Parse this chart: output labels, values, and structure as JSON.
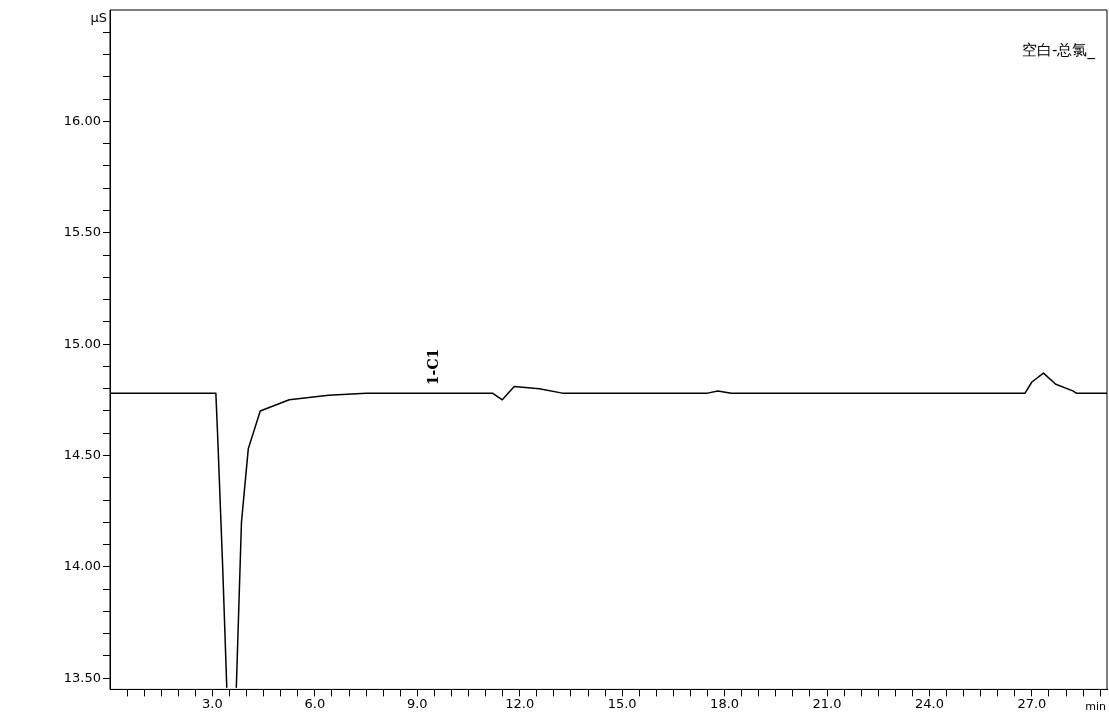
{
  "chart_data": {
    "type": "line",
    "title": "空白-总氯_",
    "xlabel": "min",
    "ylabel": "µS",
    "x": [
      0,
      3.1,
      3.15,
      3.3,
      3.42,
      3.55,
      3.7,
      3.85,
      4.05,
      4.4,
      5.25,
      6.4,
      7.5,
      11.2,
      11.49,
      11.84,
      12.57,
      13.25,
      17.5,
      17.8,
      18.2,
      26.8,
      27.0,
      27.34,
      27.7,
      28.2,
      28.3,
      29.2
    ],
    "series": [
      {
        "color": "#000000",
        "values": [
          14.78,
          14.78,
          14.6,
          14.0,
          13.46,
          null,
          13.46,
          14.2,
          14.53,
          14.7,
          14.75,
          14.77,
          14.78,
          14.78,
          14.75,
          14.81,
          14.8,
          14.78,
          14.78,
          14.79,
          14.78,
          14.78,
          14.83,
          14.87,
          14.82,
          14.79,
          14.78,
          14.78
        ]
      }
    ],
    "xlim": [
      0,
      29.2
    ],
    "ylim": [
      13.45,
      16.5
    ],
    "xticks": [
      {
        "value": 0.5,
        "label": null
      },
      {
        "value": 1,
        "label": null
      },
      {
        "value": 1.5,
        "label": null
      },
      {
        "value": 2,
        "label": null
      },
      {
        "value": 2.5,
        "label": null
      },
      {
        "value": 3,
        "label": "3.0"
      },
      {
        "value": 3.5,
        "label": null
      },
      {
        "value": 4,
        "label": null
      },
      {
        "value": 4.5,
        "label": null
      },
      {
        "value": 5,
        "label": null
      },
      {
        "value": 5.5,
        "label": null
      },
      {
        "value": 6,
        "label": "6.0"
      },
      {
        "value": 6.5,
        "label": null
      },
      {
        "value": 7,
        "label": null
      },
      {
        "value": 7.5,
        "label": null
      },
      {
        "value": 8,
        "label": null
      },
      {
        "value": 8.5,
        "label": null
      },
      {
        "value": 9,
        "label": "9.0"
      },
      {
        "value": 9.5,
        "label": null
      },
      {
        "value": 10,
        "label": null
      },
      {
        "value": 10.5,
        "label": null
      },
      {
        "value": 11,
        "label": null
      },
      {
        "value": 11.5,
        "label": null
      },
      {
        "value": 12,
        "label": "12.0"
      },
      {
        "value": 12.5,
        "label": null
      },
      {
        "value": 13,
        "label": null
      },
      {
        "value": 13.5,
        "label": null
      },
      {
        "value": 14,
        "label": null
      },
      {
        "value": 14.5,
        "label": null
      },
      {
        "value": 15,
        "label": "15.0"
      },
      {
        "value": 15.5,
        "label": null
      },
      {
        "value": 16,
        "label": null
      },
      {
        "value": 16.5,
        "label": null
      },
      {
        "value": 17,
        "label": null
      },
      {
        "value": 17.5,
        "label": null
      },
      {
        "value": 18,
        "label": "18.0"
      },
      {
        "value": 18.5,
        "label": null
      },
      {
        "value": 19,
        "label": null
      },
      {
        "value": 19.5,
        "label": null
      },
      {
        "value": 20,
        "label": null
      },
      {
        "value": 20.5,
        "label": null
      },
      {
        "value": 21,
        "label": "21.0"
      },
      {
        "value": 21.5,
        "label": null
      },
      {
        "value": 22,
        "label": null
      },
      {
        "value": 22.5,
        "label": null
      },
      {
        "value": 23,
        "label": null
      },
      {
        "value": 23.5,
        "label": null
      },
      {
        "value": 24,
        "label": "24.0"
      },
      {
        "value": 24.5,
        "label": null
      },
      {
        "value": 25,
        "label": null
      },
      {
        "value": 25.5,
        "label": null
      },
      {
        "value": 26,
        "label": null
      },
      {
        "value": 26.5,
        "label": null
      },
      {
        "value": 27,
        "label": "27.0"
      },
      {
        "value": 27.5,
        "label": null
      },
      {
        "value": 28,
        "label": null
      },
      {
        "value": 28.5,
        "label": null
      },
      {
        "value": 29,
        "label": null
      }
    ],
    "yticks": [
      {
        "value": 13.5,
        "label": "13.50"
      },
      {
        "value": 13.6,
        "label": null
      },
      {
        "value": 13.7,
        "label": null
      },
      {
        "value": 13.8,
        "label": null
      },
      {
        "value": 13.9,
        "label": null
      },
      {
        "value": 14,
        "label": "14.00"
      },
      {
        "value": 14.1,
        "label": null
      },
      {
        "value": 14.2,
        "label": null
      },
      {
        "value": 14.3,
        "label": null
      },
      {
        "value": 14.4,
        "label": null
      },
      {
        "value": 14.5,
        "label": "14.50"
      },
      {
        "value": 14.6,
        "label": null
      },
      {
        "value": 14.7,
        "label": null
      },
      {
        "value": 14.8,
        "label": null
      },
      {
        "value": 14.9,
        "label": null
      },
      {
        "value": 15,
        "label": "15.00"
      },
      {
        "value": 15.1,
        "label": null
      },
      {
        "value": 15.2,
        "label": null
      },
      {
        "value": 15.3,
        "label": null
      },
      {
        "value": 15.4,
        "label": null
      },
      {
        "value": 15.5,
        "label": "15.50"
      },
      {
        "value": 15.6,
        "label": null
      },
      {
        "value": 15.7,
        "label": null
      },
      {
        "value": 15.8,
        "label": null
      },
      {
        "value": 15.9,
        "label": null
      },
      {
        "value": 16,
        "label": "16.00"
      },
      {
        "value": 16.1,
        "label": null
      },
      {
        "value": 16.2,
        "label": null
      },
      {
        "value": 16.3,
        "label": null
      },
      {
        "value": 16.4,
        "label": null
      }
    ],
    "annotations": [
      {
        "text": "1-C1",
        "x": 9.5,
        "y": 14.78
      }
    ],
    "grid": false,
    "legend": false,
    "marker": "none",
    "line_style": "solid"
  }
}
